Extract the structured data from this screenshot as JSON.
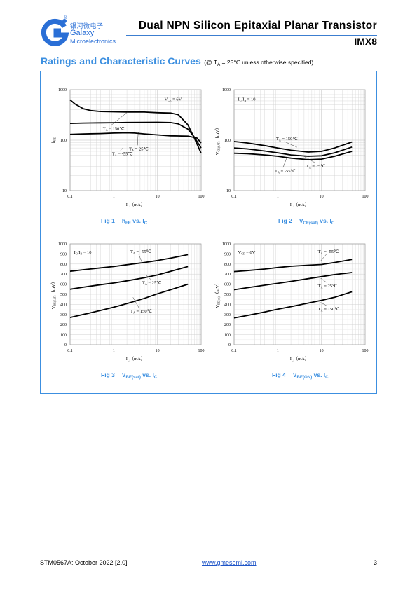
{
  "header": {
    "logo": {
      "cn_name": "银河微电子",
      "brand": "Galaxy",
      "subtitle": "Microelectronics",
      "registered": "®",
      "color": "#2a6fd6"
    },
    "title": "Dual NPN Silicon Epitaxial Planar Transistor",
    "part": "IMX8"
  },
  "section": {
    "heading": "Ratings and Characteristic Curves",
    "condition_prefix": "(@ T",
    "condition_sub": "A",
    "condition_suffix": " = 25℃ unless otherwise specified)"
  },
  "colors": {
    "accent": "#3c8fe0",
    "line": "#000000",
    "grid": "#d0d0d0"
  },
  "chart_data": [
    {
      "type": "line",
      "caption": {
        "fig": "Fig 1",
        "main": "h",
        "sub": "FE",
        "rest": " vs. I",
        "sub2": "C"
      },
      "xscale": "log",
      "yscale": "log",
      "xlim": [
        0.1,
        100
      ],
      "ylim": [
        10,
        1000
      ],
      "xticks": [
        "0.1",
        "1",
        "10",
        "100"
      ],
      "yticks": [
        {
          "v": 10,
          "label": "10"
        },
        {
          "v": 100,
          "label": "100"
        },
        {
          "v": 1000,
          "label": "1000"
        }
      ],
      "xlabel": {
        "main": "I",
        "sub": "C",
        "rest": "（mA）"
      },
      "ylabel": {
        "main": "h",
        "sub": "FE",
        "rest": ""
      },
      "condition": {
        "main": "V",
        "sub": "CE",
        "rest": " =  6V"
      },
      "series": [
        {
          "label": {
            "main": "T",
            "sub": "A",
            "rest": " = 150℃"
          },
          "x": [
            0.1,
            0.13,
            0.2,
            0.3,
            0.5,
            1,
            2,
            5,
            10,
            20,
            30,
            50,
            70,
            100
          ],
          "y": [
            630,
            520,
            420,
            385,
            370,
            365,
            362,
            360,
            350,
            345,
            320,
            200,
            110,
            55
          ]
        },
        {
          "label": {
            "main": "T",
            "sub": "A",
            "rest": " = 25℃"
          },
          "x": [
            0.1,
            0.2,
            0.5,
            1,
            2,
            5,
            10,
            20,
            30,
            50,
            70,
            100
          ],
          "y": [
            215,
            218,
            220,
            222,
            224,
            225,
            226,
            223,
            210,
            165,
            115,
            70
          ]
        },
        {
          "label": {
            "main": "T",
            "sub": "A",
            "rest": " = -55℃"
          },
          "x": [
            0.1,
            0.2,
            0.5,
            1,
            2,
            3,
            5,
            10,
            20,
            50,
            80,
            100
          ],
          "y": [
            130,
            133,
            135,
            138,
            140,
            138,
            133,
            127,
            122,
            120,
            110,
            88
          ]
        }
      ]
    },
    {
      "type": "line",
      "caption": {
        "fig": "Fig 2",
        "main": "V",
        "sub": "CE(sat)",
        "rest": " vs. I",
        "sub2": "C"
      },
      "xscale": "log",
      "yscale": "log",
      "xlim": [
        0.1,
        100
      ],
      "ylim": [
        10,
        1000
      ],
      "xticks": [
        "0.1",
        "1",
        "10",
        "100"
      ],
      "yticks": [
        {
          "v": 10,
          "label": "10"
        },
        {
          "v": 100,
          "label": "100"
        },
        {
          "v": 1000,
          "label": "1000"
        }
      ],
      "xlabel": {
        "main": "I",
        "sub": "C",
        "rest": "（mA）"
      },
      "ylabel": {
        "main": "V",
        "sub": "CE(SAT)",
        "rest": "（mV）"
      },
      "condition": {
        "main": "I",
        "sub": "C",
        "rest": "/I",
        "sub2": "B",
        "rest2": " = 10"
      },
      "series": [
        {
          "label": {
            "main": "T",
            "sub": "A",
            "rest": " = 150℃"
          },
          "x": [
            0.1,
            0.2,
            0.5,
            1,
            2,
            5,
            10,
            20,
            50
          ],
          "y": [
            94,
            88,
            78,
            70,
            63,
            58,
            60,
            70,
            92
          ]
        },
        {
          "label": {
            "main": "T",
            "sub": "A",
            "rest": " = 25℃"
          },
          "x": [
            0.1,
            0.2,
            0.5,
            1,
            2,
            5,
            10,
            20,
            50
          ],
          "y": [
            70,
            67,
            61,
            56,
            51,
            48,
            49,
            56,
            73
          ]
        },
        {
          "label": {
            "main": "T",
            "sub": "A",
            "rest": " = -55℃"
          },
          "x": [
            0.1,
            0.2,
            0.5,
            1,
            2,
            5,
            10,
            20,
            50
          ],
          "y": [
            55,
            54,
            51,
            48,
            44,
            41,
            42,
            48,
            60
          ]
        }
      ]
    },
    {
      "type": "line",
      "caption": {
        "fig": "Fig 3",
        "main": "V",
        "sub": "BE(sat)",
        "rest": " vs. I",
        "sub2": "C"
      },
      "xscale": "log",
      "yscale": "linear",
      "xlim": [
        0.1,
        100
      ],
      "ylim": [
        0,
        1000
      ],
      "xticks": [
        "0.1",
        "1",
        "10",
        "100"
      ],
      "yticks": [
        {
          "v": 0,
          "label": "0"
        },
        {
          "v": 100,
          "label": "100"
        },
        {
          "v": 200,
          "label": "200"
        },
        {
          "v": 300,
          "label": "300"
        },
        {
          "v": 400,
          "label": "400"
        },
        {
          "v": 500,
          "label": "500"
        },
        {
          "v": 600,
          "label": "600"
        },
        {
          "v": 700,
          "label": "700"
        },
        {
          "v": 800,
          "label": "800"
        },
        {
          "v": 900,
          "label": "900"
        },
        {
          "v": 1000,
          "label": "1000"
        }
      ],
      "xlabel": {
        "main": "I",
        "sub": "C",
        "rest": "（mA）"
      },
      "ylabel": {
        "main": "V",
        "sub": "BE(SAT)",
        "rest": "（mV）"
      },
      "condition": {
        "main": "I",
        "sub": "C",
        "rest": "/I",
        "sub2": "B",
        "rest2": " = 10"
      },
      "series": [
        {
          "label": {
            "main": "T",
            "sub": "A",
            "rest": " = -55℃"
          },
          "x": [
            0.1,
            0.2,
            0.5,
            1,
            2,
            5,
            10,
            20,
            50
          ],
          "y": [
            728,
            743,
            762,
            775,
            793,
            815,
            835,
            858,
            893
          ]
        },
        {
          "label": {
            "main": "T",
            "sub": "A",
            "rest": " = 25℃"
          },
          "x": [
            0.1,
            0.2,
            0.5,
            1,
            2,
            5,
            10,
            20,
            50
          ],
          "y": [
            550,
            570,
            595,
            612,
            633,
            664,
            692,
            728,
            775
          ]
        },
        {
          "label": {
            "main": "T",
            "sub": "A",
            "rest": " = 150℃"
          },
          "x": [
            0.1,
            0.2,
            0.5,
            1,
            2,
            5,
            10,
            20,
            50
          ],
          "y": [
            270,
            300,
            340,
            372,
            408,
            460,
            505,
            545,
            600
          ]
        }
      ]
    },
    {
      "type": "line",
      "caption": {
        "fig": "Fig 4",
        "main": "V",
        "sub": "BE(ON)",
        "rest": " vs. I",
        "sub2": "C"
      },
      "xscale": "log",
      "yscale": "linear",
      "xlim": [
        0.1,
        100
      ],
      "ylim": [
        0,
        1000
      ],
      "xticks": [
        "0.1",
        "1",
        "10",
        "100"
      ],
      "yticks": [
        {
          "v": 0,
          "label": "0"
        },
        {
          "v": 100,
          "label": "100"
        },
        {
          "v": 200,
          "label": "200"
        },
        {
          "v": 300,
          "label": "300"
        },
        {
          "v": 400,
          "label": "400"
        },
        {
          "v": 500,
          "label": "500"
        },
        {
          "v": 600,
          "label": "600"
        },
        {
          "v": 700,
          "label": "700"
        },
        {
          "v": 800,
          "label": "800"
        },
        {
          "v": 900,
          "label": "900"
        },
        {
          "v": 1000,
          "label": "1000"
        }
      ],
      "xlabel": {
        "main": "I",
        "sub": "C",
        "rest": "（mA）"
      },
      "ylabel": {
        "main": "V",
        "sub": "BE(on)",
        "rest": "（mV）"
      },
      "condition": {
        "main": "V",
        "sub": "CE",
        "rest": " = 6V"
      },
      "series": [
        {
          "label": {
            "main": "T",
            "sub": "A",
            "rest": " = -55℃"
          },
          "x": [
            0.1,
            0.2,
            0.5,
            1,
            2,
            5,
            10,
            20,
            50
          ],
          "y": [
            725,
            735,
            750,
            765,
            778,
            788,
            795,
            815,
            845
          ]
        },
        {
          "label": {
            "main": "T",
            "sub": "A",
            "rest": " = 25℃"
          },
          "x": [
            0.1,
            0.2,
            0.5,
            1,
            2,
            5,
            10,
            20,
            50
          ],
          "y": [
            545,
            565,
            590,
            608,
            628,
            655,
            675,
            695,
            715
          ]
        },
        {
          "label": {
            "main": "T",
            "sub": "A",
            "rest": " = 150℃"
          },
          "x": [
            0.1,
            0.2,
            0.5,
            1,
            2,
            5,
            10,
            20,
            50
          ],
          "y": [
            265,
            290,
            325,
            352,
            378,
            413,
            440,
            470,
            525
          ]
        }
      ]
    }
  ],
  "footer": {
    "doc": "STM0567A: October 2022 [2.0]",
    "url": "www.gmesemi.com",
    "page": "3"
  }
}
